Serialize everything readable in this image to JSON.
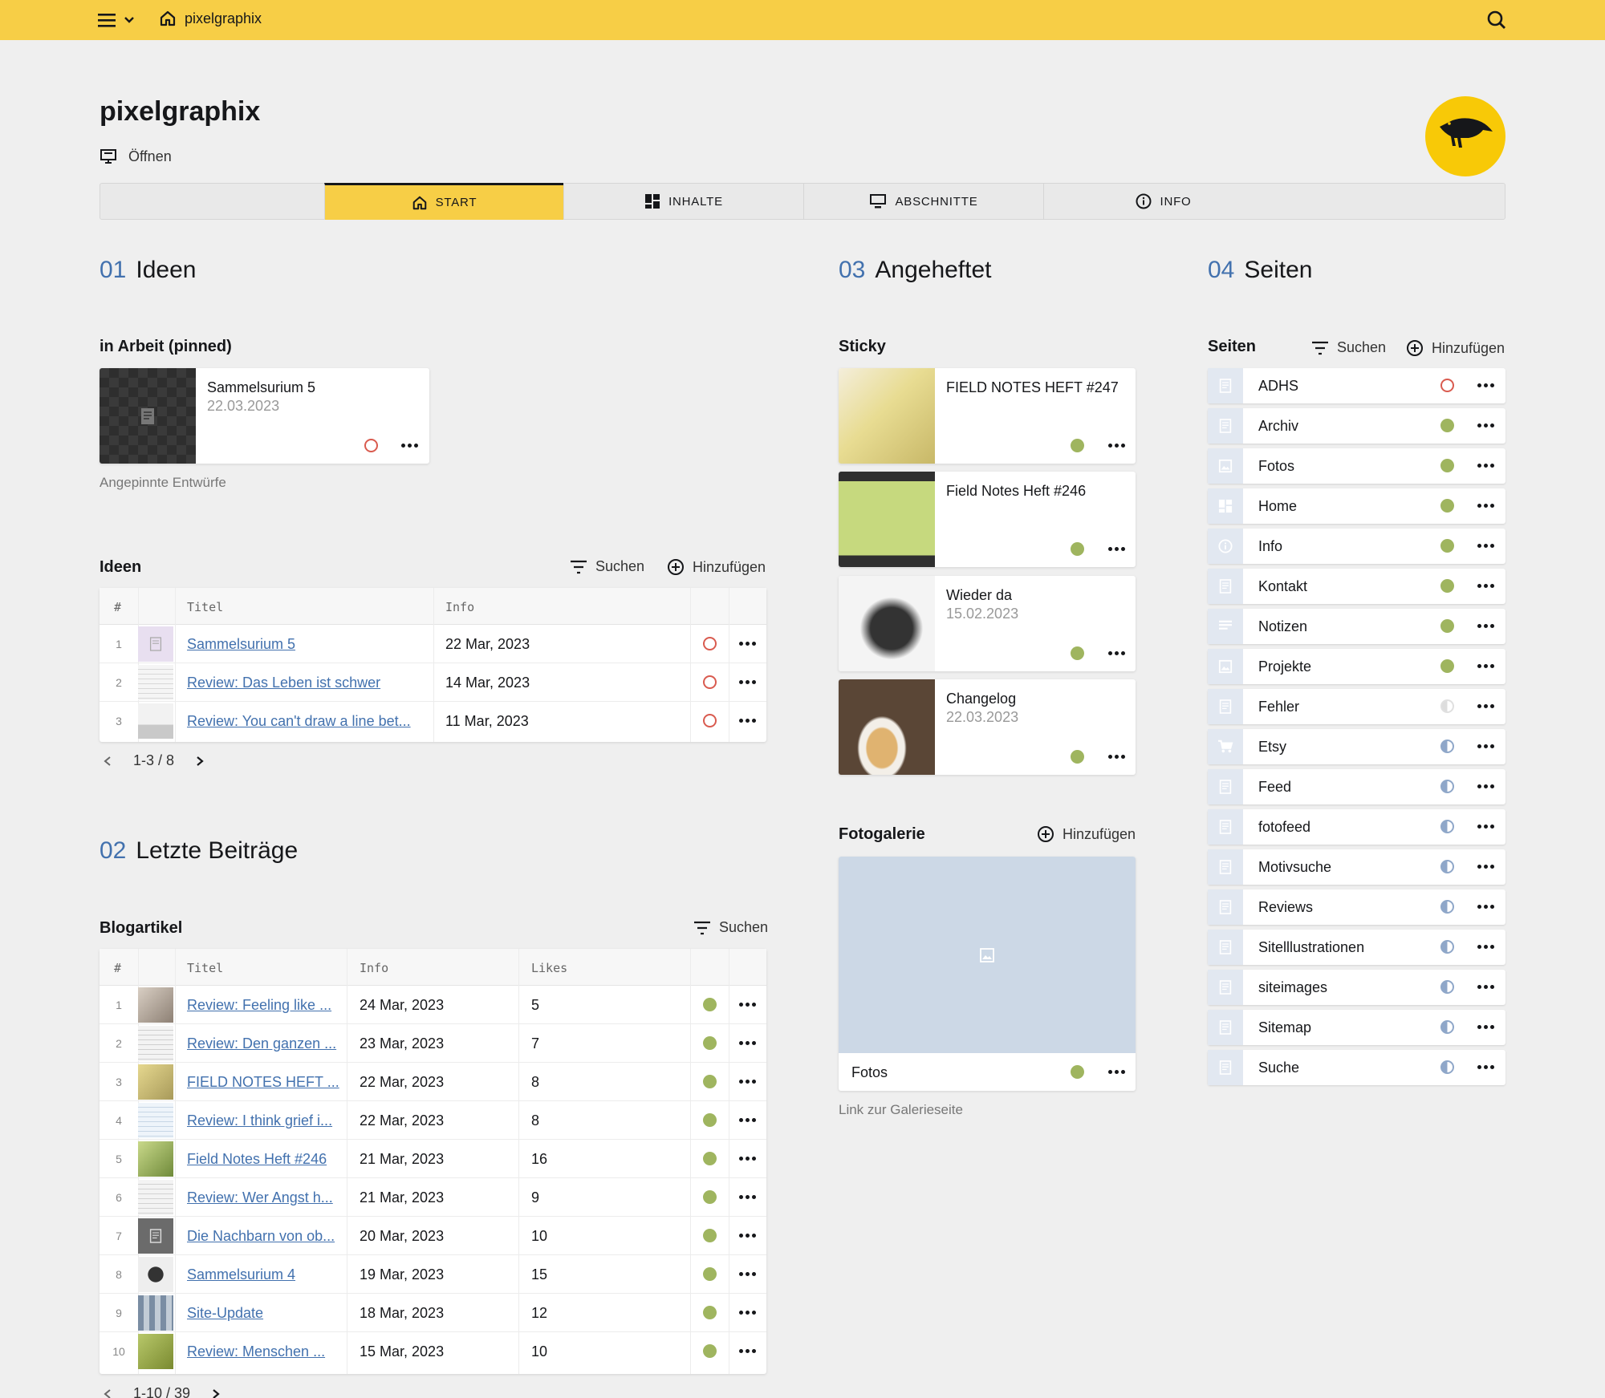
{
  "topbar": {
    "site_name": "pixelgraphix"
  },
  "header": {
    "title": "pixelgraphix",
    "open_label": "Öffnen"
  },
  "tabs": [
    {
      "label": "START",
      "icon": "home-icon",
      "active": true
    },
    {
      "label": "INHALTE",
      "icon": "grid-icon"
    },
    {
      "label": "ABSCHNITTE",
      "icon": "monitor-icon"
    },
    {
      "label": "INFO",
      "icon": "info-icon"
    }
  ],
  "sections": {
    "ideen": {
      "num": "01",
      "title": "Ideen"
    },
    "beitraege": {
      "num": "02",
      "title": "Letzte Beiträge"
    },
    "angeheftet": {
      "num": "03",
      "title": "Angeheftet"
    },
    "seiten": {
      "num": "04",
      "title": "Seiten"
    }
  },
  "pinned": {
    "label": "in Arbeit (pinned)",
    "card": {
      "title": "Sammelsurium 5",
      "date": "22.03.2023",
      "status": "draft"
    },
    "help": "Angepinnte Entwürfe"
  },
  "ideas": {
    "label": "Ideen",
    "search_label": "Suchen",
    "add_label": "Hinzufügen",
    "columns": {
      "index": "#",
      "title": "Titel",
      "info": "Info"
    },
    "rows": [
      {
        "index": "1",
        "title": "Sammelsurium 5",
        "info": "22 Mar, 2023",
        "status": "draft"
      },
      {
        "index": "2",
        "title": "Review: Das Leben ist schwer",
        "info": "14 Mar, 2023",
        "status": "draft"
      },
      {
        "index": "3",
        "title": "Review: You can't draw a line bet...",
        "info": "11 Mar, 2023",
        "status": "draft"
      }
    ],
    "pagination": "1-3 / 8"
  },
  "blog": {
    "label": "Blogartikel",
    "search_label": "Suchen",
    "columns": {
      "index": "#",
      "title": "Titel",
      "info": "Info",
      "likes": "Likes"
    },
    "rows": [
      {
        "index": "1",
        "title": "Review: Feeling like ...",
        "info": "24 Mar, 2023",
        "likes": "5"
      },
      {
        "index": "2",
        "title": "Review: Den ganzen ...",
        "info": "23 Mar, 2023",
        "likes": "7"
      },
      {
        "index": "3",
        "title": "FIELD NOTES HEFT ...",
        "info": "22 Mar, 2023",
        "likes": "8"
      },
      {
        "index": "4",
        "title": "Review: I think grief i...",
        "info": "22 Mar, 2023",
        "likes": "8"
      },
      {
        "index": "5",
        "title": "Field Notes Heft #246",
        "info": "21 Mar, 2023",
        "likes": "16"
      },
      {
        "index": "6",
        "title": "Review: Wer Angst h...",
        "info": "21 Mar, 2023",
        "likes": "9"
      },
      {
        "index": "7",
        "title": "Die Nachbarn von ob...",
        "info": "20 Mar, 2023",
        "likes": "10"
      },
      {
        "index": "8",
        "title": "Sammelsurium 4",
        "info": "19 Mar, 2023",
        "likes": "15"
      },
      {
        "index": "9",
        "title": "Site-Update",
        "info": "18 Mar, 2023",
        "likes": "12"
      },
      {
        "index": "10",
        "title": "Review: Menschen ...",
        "info": "15 Mar, 2023",
        "likes": "10"
      }
    ],
    "pagination": "1-10 / 39"
  },
  "sticky": {
    "label": "Sticky",
    "cards": [
      {
        "title": "FIELD NOTES HEFT #247",
        "date": "",
        "status": "listed"
      },
      {
        "title": "Field Notes Heft #246",
        "date": "",
        "status": "listed"
      },
      {
        "title": "Wieder da",
        "date": "15.02.2023",
        "status": "listed"
      },
      {
        "title": "Changelog",
        "date": "22.03.2023",
        "status": "listed"
      }
    ]
  },
  "gallery": {
    "label": "Fotogalerie",
    "add_label": "Hinzufügen",
    "item_title": "Fotos",
    "help": "Link zur Galerieseite"
  },
  "pages": {
    "label": "Seiten",
    "search_label": "Suchen",
    "add_label": "Hinzufügen",
    "items": [
      {
        "title": "ADHS",
        "status": "draft",
        "icon": "page-icon"
      },
      {
        "title": "Archiv",
        "status": "listed",
        "icon": "page-icon"
      },
      {
        "title": "Fotos",
        "status": "listed",
        "icon": "image-icon"
      },
      {
        "title": "Home",
        "status": "listed",
        "icon": "grid-icon"
      },
      {
        "title": "Info",
        "status": "listed",
        "icon": "info-icon"
      },
      {
        "title": "Kontakt",
        "status": "listed",
        "icon": "page-icon"
      },
      {
        "title": "Notizen",
        "status": "listed",
        "icon": "text-icon"
      },
      {
        "title": "Projekte",
        "status": "listed",
        "icon": "image-icon"
      },
      {
        "title": "Fehler",
        "status": "faint",
        "icon": "page-icon"
      },
      {
        "title": "Etsy",
        "status": "unlisted",
        "icon": "cart-icon"
      },
      {
        "title": "Feed",
        "status": "unlisted",
        "icon": "page-icon"
      },
      {
        "title": "fotofeed",
        "status": "unlisted",
        "icon": "page-icon"
      },
      {
        "title": "Motivsuche",
        "status": "unlisted",
        "icon": "page-icon"
      },
      {
        "title": "Reviews",
        "status": "unlisted",
        "icon": "page-icon"
      },
      {
        "title": "Sitelllustrationen",
        "status": "unlisted",
        "icon": "page-icon"
      },
      {
        "title": "siteimages",
        "status": "unlisted",
        "icon": "page-icon"
      },
      {
        "title": "Sitemap",
        "status": "unlisted",
        "icon": "page-icon"
      },
      {
        "title": "Suche",
        "status": "unlisted",
        "icon": "page-icon"
      }
    ]
  },
  "colors": {
    "topbar": "#f7ce46",
    "accent_blue": "#4271ae",
    "status_listed": "#9fb55f",
    "status_draft": "#d95b4f",
    "status_unlisted": "#8fa7c9",
    "avatar_bg": "#f8c907"
  }
}
